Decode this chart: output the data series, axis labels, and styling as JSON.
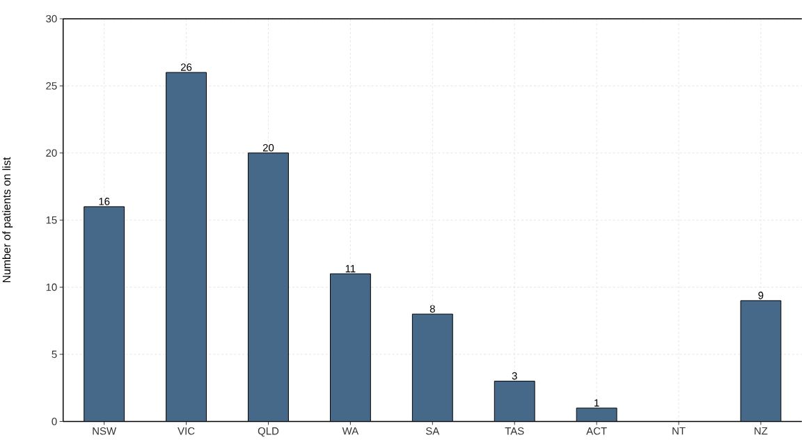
{
  "chart_data": {
    "type": "bar",
    "ylabel": "Number of patients on list",
    "categories": [
      "NSW",
      "VIC",
      "QLD",
      "WA",
      "SA",
      "TAS",
      "ACT",
      "NT",
      "NZ"
    ],
    "values": [
      16,
      26,
      20,
      11,
      8,
      3,
      1,
      0,
      9
    ],
    "value_labels": [
      "16",
      "26",
      "20",
      "11",
      "8",
      "3",
      "1",
      null,
      "9"
    ],
    "color": "#46698a",
    "ylim": [
      0,
      30
    ],
    "yticks": [
      0,
      5,
      10,
      15,
      20,
      25,
      30
    ],
    "grid": true
  }
}
